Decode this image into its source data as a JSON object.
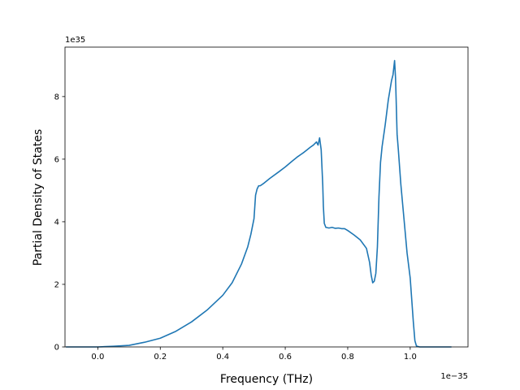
{
  "chart_data": {
    "type": "line",
    "title": "",
    "xlabel": "Frequency (THz)",
    "ylabel": "Partial Density of States",
    "x_offset_label": "1e−35",
    "y_offset_label": "1e35",
    "xlim": [
      -0.105,
      1.185
    ],
    "ylim": [
      0,
      9.58
    ],
    "x_ticks": [
      0.0,
      0.2,
      0.4,
      0.6,
      0.8,
      1.0
    ],
    "x_tick_labels": [
      "0.0",
      "0.2",
      "0.4",
      "0.6",
      "0.8",
      "1.0"
    ],
    "y_ticks": [
      0,
      2,
      4,
      6,
      8
    ],
    "y_tick_labels": [
      "0",
      "2",
      "4",
      "6",
      "8"
    ],
    "grid": false,
    "series": [
      {
        "color": "#1f77b4",
        "x": [
          -0.1,
          0.0,
          0.05,
          0.1,
          0.15,
          0.2,
          0.25,
          0.3,
          0.35,
          0.4,
          0.43,
          0.46,
          0.48,
          0.49,
          0.5,
          0.505,
          0.51,
          0.515,
          0.52,
          0.53,
          0.55,
          0.58,
          0.6,
          0.62,
          0.64,
          0.65,
          0.66,
          0.67,
          0.68,
          0.69,
          0.7,
          0.705,
          0.71,
          0.715,
          0.72,
          0.722,
          0.725,
          0.73,
          0.74,
          0.75,
          0.76,
          0.77,
          0.78,
          0.79,
          0.8,
          0.82,
          0.84,
          0.86,
          0.87,
          0.875,
          0.88,
          0.885,
          0.89,
          0.895,
          0.9,
          0.905,
          0.91,
          0.92,
          0.93,
          0.94,
          0.945,
          0.95,
          0.953,
          0.955,
          0.958,
          0.962,
          0.97,
          0.98,
          0.99,
          1.0,
          1.005,
          1.01,
          1.015,
          1.02,
          1.03,
          1.05,
          1.1,
          1.13
        ],
        "y": [
          0.0,
          0.0,
          0.02,
          0.05,
          0.15,
          0.28,
          0.5,
          0.8,
          1.18,
          1.65,
          2.05,
          2.65,
          3.2,
          3.6,
          4.1,
          4.85,
          5.05,
          5.15,
          5.15,
          5.22,
          5.38,
          5.6,
          5.75,
          5.92,
          6.08,
          6.15,
          6.22,
          6.3,
          6.38,
          6.45,
          6.55,
          6.45,
          6.68,
          6.3,
          5.2,
          4.5,
          3.95,
          3.82,
          3.8,
          3.82,
          3.79,
          3.8,
          3.78,
          3.78,
          3.72,
          3.58,
          3.42,
          3.15,
          2.7,
          2.3,
          2.05,
          2.1,
          2.35,
          3.2,
          4.8,
          5.9,
          6.4,
          7.1,
          7.9,
          8.5,
          8.7,
          9.15,
          8.6,
          7.9,
          6.8,
          6.3,
          5.2,
          4.1,
          3.0,
          2.2,
          1.5,
          0.8,
          0.2,
          0.03,
          0.0,
          0.0,
          0.0,
          0.0
        ]
      }
    ]
  }
}
